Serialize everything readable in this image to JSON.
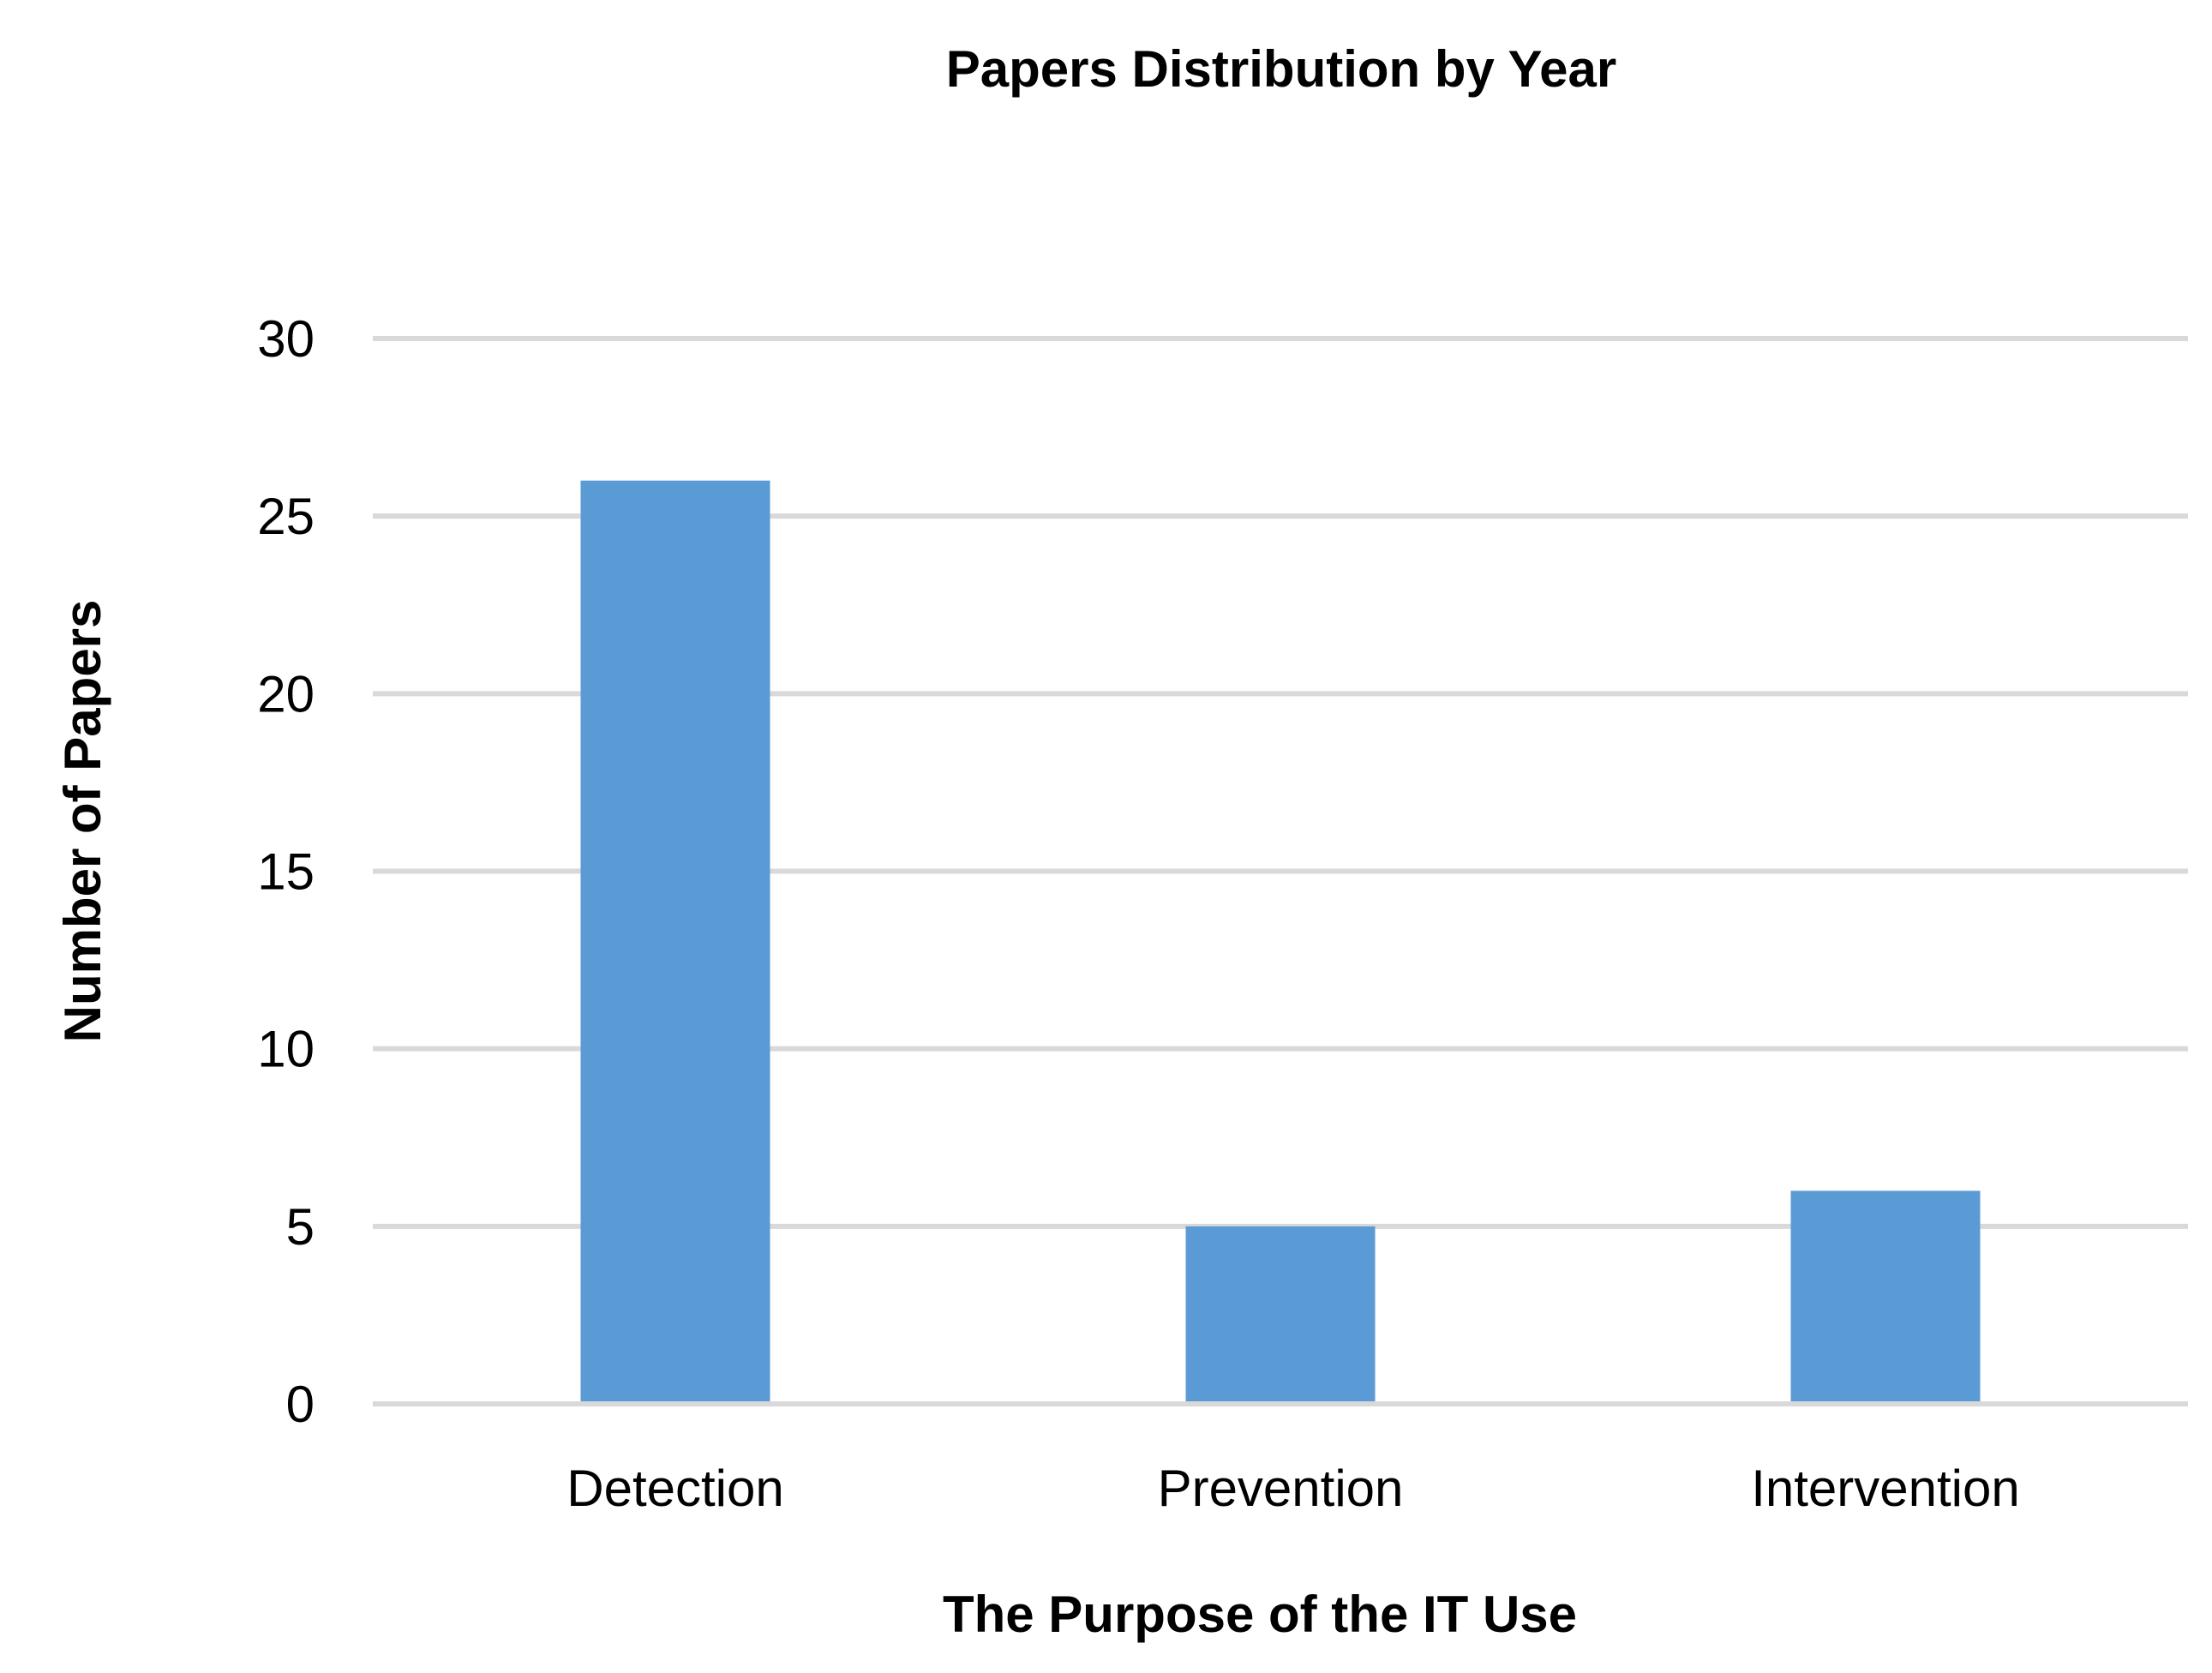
{
  "chart_data": {
    "type": "bar",
    "title": "Papers Distribution by Year",
    "xlabel": "The Purpose of the IT Use",
    "ylabel": "Number of Papers",
    "categories": [
      "Detection",
      "Prevention",
      "Intervention"
    ],
    "values": [
      26,
      5,
      6
    ],
    "ylim": [
      0,
      30
    ],
    "yticks": [
      0,
      5,
      10,
      15,
      20,
      25,
      30
    ],
    "ytick_labels": [
      "0",
      "5",
      "10",
      "15",
      "20",
      "25",
      "30"
    ],
    "grid": true,
    "legend": "none",
    "bar_color": "#5b9bd5",
    "grid_color": "#d9d9d9"
  }
}
